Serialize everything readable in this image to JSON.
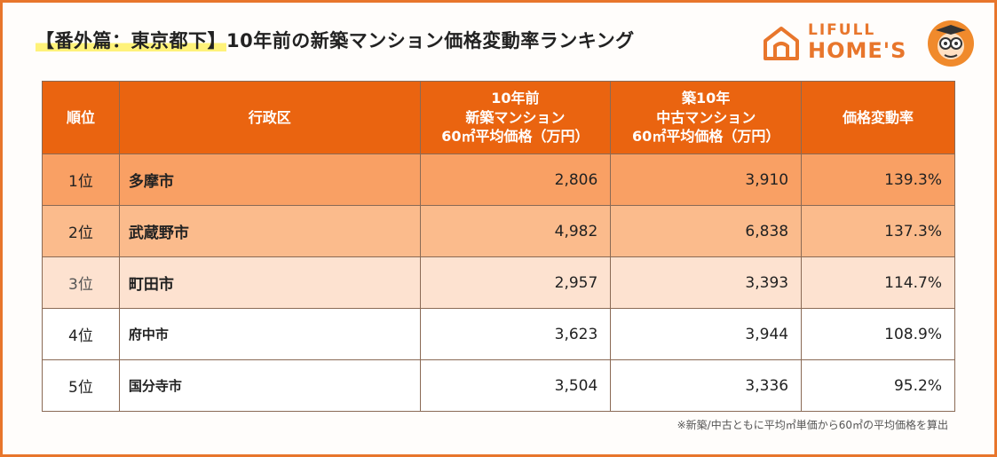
{
  "title": {
    "highlight": "【番外篇：東京都下】",
    "rest": "10年前の新築マンション価格変動率ランキング"
  },
  "logo": {
    "line1": "LIFULL",
    "line2": "HOME'S",
    "house_icon": "house-icon",
    "mascot_icon": "mascot-icon"
  },
  "table": {
    "headers": [
      "順位",
      "行政区",
      "10年前\n新築マンション\n60㎡平均価格（万円）",
      "築10年\n中古マンション\n60㎡平均価格（万円）",
      "価格変動率"
    ],
    "rows": [
      {
        "rank": "1位",
        "city": "多摩市",
        "new_price": "2,806",
        "used_price": "3,910",
        "rate": "139.3%"
      },
      {
        "rank": "2位",
        "city": "武蔵野市",
        "new_price": "4,982",
        "used_price": "6,838",
        "rate": "137.3%"
      },
      {
        "rank": "3位",
        "city": "町田市",
        "new_price": "2,957",
        "used_price": "3,393",
        "rate": "114.7%"
      },
      {
        "rank": "4位",
        "city": "府中市",
        "new_price": "3,623",
        "used_price": "3,944",
        "rate": "108.9%"
      },
      {
        "rank": "5位",
        "city": "国分寺市",
        "new_price": "3,504",
        "used_price": "3,336",
        "rate": "95.2%"
      }
    ]
  },
  "note": "※新築/中古ともに平均㎡単価から60㎡の平均価格を算出",
  "colors": {
    "accent": "#ea6410",
    "row1": "#f9a064",
    "row2": "#fbbb8c",
    "row3": "#fde2d0"
  }
}
